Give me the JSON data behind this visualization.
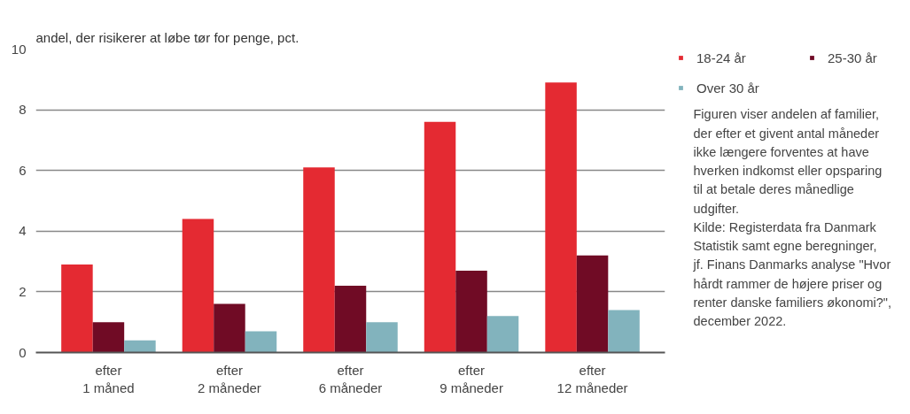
{
  "chart_data": {
    "type": "bar",
    "title": "andel, der risikerer at løbe tør for penge, pct.",
    "categories": [
      "efter 1 måned",
      "efter 2 måneder",
      "efter 6 måneder",
      "efter 9 måneder",
      "efter 12 måneder"
    ],
    "series": [
      {
        "name": "18-24 år",
        "color": "#e42a32",
        "values": [
          2.9,
          4.4,
          6.1,
          7.6,
          8.9
        ]
      },
      {
        "name": "25-30 år",
        "color": "#700b25",
        "values": [
          1.0,
          1.6,
          2.2,
          2.7,
          3.2
        ]
      },
      {
        "name": "Over 30 år",
        "color": "#82b3bd",
        "values": [
          0.4,
          0.7,
          1.0,
          1.2,
          1.4
        ]
      }
    ],
    "ylim": [
      0,
      10
    ],
    "yticks": [
      0,
      2,
      4,
      6,
      8,
      10
    ],
    "grid": "y",
    "legend": "top right",
    "annotations": [
      "Figuren viser andelen af familier, der efter et givent antal måneder ikke længere forventes at have hverken indkomst eller opsparing til at betale deres månedlige udgifter.",
      "Kilde: Registerdata fra Danmark Statistik samt egne beregninger, jf. Finans Danmarks analyse \"Hvor hårdt rammer de højere priser og renter danske familiers økonomi?\", december 2022."
    ]
  }
}
